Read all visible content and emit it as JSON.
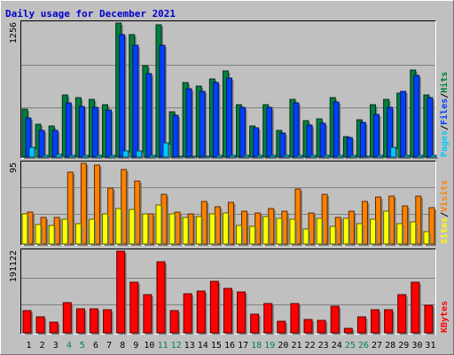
{
  "chart_data": [
    {
      "type": "bar",
      "title": "Daily usage for December 2021",
      "ymax_label": "1256",
      "ylim": [
        0,
        1256
      ],
      "categories": [
        "1",
        "2",
        "3",
        "4",
        "5",
        "6",
        "7",
        "8",
        "9",
        "10",
        "11",
        "12",
        "13",
        "14",
        "15",
        "16",
        "17",
        "18",
        "19",
        "20",
        "21",
        "22",
        "23",
        "24",
        "25",
        "26",
        "27",
        "28",
        "29",
        "30",
        "31"
      ],
      "weekend_days": [
        "4",
        "5",
        "11",
        "12",
        "18",
        "19",
        "25",
        "26"
      ],
      "series": [
        {
          "name": "Hits",
          "color": "#008040",
          "values": [
            453,
            306,
            290,
            580,
            561,
            544,
            489,
            1256,
            1151,
            853,
            1240,
            421,
            696,
            667,
            730,
            806,
            491,
            295,
            491,
            248,
            537,
            343,
            360,
            554,
            191,
            352,
            490,
            537,
            595,
            816,
            584
          ]
        },
        {
          "name": "Files",
          "color": "#0040ff",
          "values": [
            368,
            248,
            253,
            511,
            476,
            462,
            439,
            1150,
            1050,
            779,
            1045,
            390,
            640,
            616,
            696,
            743,
            469,
            271,
            463,
            228,
            508,
            298,
            312,
            514,
            183,
            324,
            397,
            469,
            619,
            769,
            557
          ]
        },
        {
          "name": "Pages",
          "color": "#00c8ff",
          "values": [
            95,
            20,
            22,
            20,
            20,
            20,
            20,
            60,
            60,
            20,
            130,
            10,
            10,
            10,
            20,
            20,
            20,
            20,
            20,
            20,
            20,
            20,
            20,
            20,
            20,
            10,
            20,
            90,
            20,
            20,
            20
          ]
        }
      ],
      "side_labels": [
        "Pages",
        "Files",
        "Hits"
      ]
    },
    {
      "type": "bar",
      "ymax_label": "95",
      "ylim": [
        0,
        95
      ],
      "categories": [
        "1",
        "2",
        "3",
        "4",
        "5",
        "6",
        "7",
        "8",
        "9",
        "10",
        "11",
        "12",
        "13",
        "14",
        "15",
        "16",
        "17",
        "18",
        "19",
        "20",
        "21",
        "22",
        "23",
        "24",
        "25",
        "26",
        "27",
        "28",
        "29",
        "30",
        "31"
      ],
      "series": [
        {
          "name": "Visits",
          "color": "#ff8000",
          "values": [
            38,
            31,
            31,
            85,
            95,
            93,
            66,
            88,
            74,
            35,
            58,
            38,
            35,
            50,
            44,
            49,
            39,
            37,
            42,
            39,
            65,
            37,
            58,
            31,
            39,
            50,
            55,
            56,
            45,
            56,
            43
          ]
        },
        {
          "name": "Sites",
          "color": "#ffff00",
          "values": [
            36,
            23,
            22,
            29,
            24,
            29,
            35,
            42,
            41,
            36,
            46,
            35,
            31,
            32,
            36,
            37,
            22,
            21,
            32,
            30,
            29,
            18,
            30,
            21,
            30,
            24,
            29,
            39,
            24,
            26,
            15
          ]
        }
      ],
      "side_labels": [
        "Sites",
        "Visits"
      ]
    },
    {
      "type": "bar",
      "ymax_label": "191122",
      "ylim": [
        0,
        191122
      ],
      "categories": [
        "1",
        "2",
        "3",
        "4",
        "5",
        "6",
        "7",
        "8",
        "9",
        "10",
        "11",
        "12",
        "13",
        "14",
        "15",
        "16",
        "17",
        "18",
        "19",
        "20",
        "21",
        "22",
        "23",
        "24",
        "25",
        "26",
        "27",
        "28",
        "29",
        "30",
        "31"
      ],
      "series": [
        {
          "name": "KBytes",
          "color": "#ff0000",
          "values": [
            51000,
            38000,
            25000,
            71000,
            56000,
            56000,
            54000,
            191122,
            119000,
            89000,
            167000,
            51000,
            91000,
            98000,
            120000,
            104000,
            96000,
            43000,
            68000,
            27000,
            68000,
            32000,
            30000,
            63000,
            11000,
            37000,
            55000,
            55000,
            89000,
            119000,
            64000
          ]
        }
      ],
      "side_labels": [
        "KBytes"
      ]
    }
  ]
}
